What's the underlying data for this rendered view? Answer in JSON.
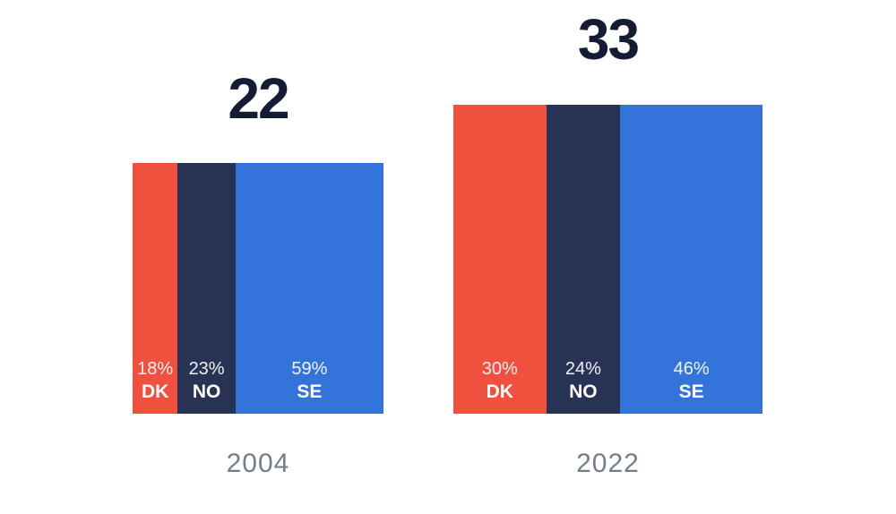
{
  "chart_data": {
    "type": "bar",
    "subtype": "area-proportional-stacked-squares",
    "title": "",
    "legend_position": "inside-segments",
    "grid": false,
    "background": "#FFFFFF",
    "title_color": "#141C33",
    "year_label_color": "#747E8A",
    "colors": {
      "DK": "#F0503E",
      "NO": "#283254",
      "SE": "#3374DA"
    },
    "groups": [
      {
        "year": "2004",
        "total": 22,
        "total_label": "22",
        "segments": [
          {
            "code": "DK",
            "pct": 18,
            "pct_label": "18%",
            "color": "#F0503E"
          },
          {
            "code": "NO",
            "pct": 23,
            "pct_label": "23%",
            "color": "#283254"
          },
          {
            "code": "SE",
            "pct": 59,
            "pct_label": "59%",
            "color": "#3374DA"
          }
        ]
      },
      {
        "year": "2022",
        "total": 33,
        "total_label": "33",
        "segments": [
          {
            "code": "DK",
            "pct": 30,
            "pct_label": "30%",
            "color": "#F0503E"
          },
          {
            "code": "NO",
            "pct": 24,
            "pct_label": "24%",
            "color": "#283254"
          },
          {
            "code": "SE",
            "pct": 46,
            "pct_label": "46%",
            "color": "#3374DA"
          }
        ]
      }
    ]
  }
}
